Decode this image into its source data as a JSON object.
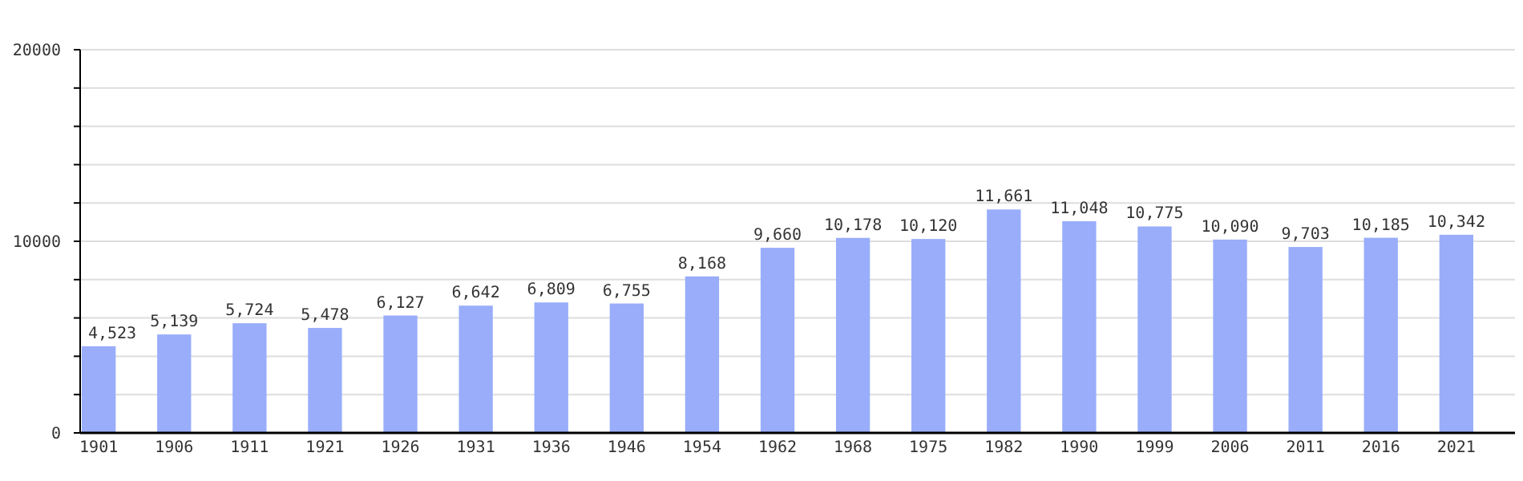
{
  "chart_data": {
    "type": "bar",
    "categories": [
      "1901",
      "1906",
      "1911",
      "1921",
      "1926",
      "1931",
      "1936",
      "1946",
      "1954",
      "1962",
      "1968",
      "1975",
      "1982",
      "1990",
      "1999",
      "2006",
      "2011",
      "2016",
      "2021"
    ],
    "values": [
      4523,
      5139,
      5724,
      5478,
      6127,
      6642,
      6809,
      6755,
      8168,
      9660,
      10178,
      10120,
      11661,
      11048,
      10775,
      10090,
      9703,
      10185,
      10342
    ],
    "value_labels": [
      "4,523",
      "5,139",
      "5,724",
      "5,478",
      "6,127",
      "6,642",
      "6,809",
      "6,755",
      "8,168",
      "9,660",
      "10,178",
      "10,120",
      "11,661",
      "11,048",
      "10,775",
      "10,090",
      "9,703",
      "10,185",
      "10,342"
    ],
    "color": "#99adfa",
    "ylim": [
      0,
      20000
    ],
    "yticks": [
      0,
      {
        "value": 2000,
        "label": null
      },
      {
        "value": 4000,
        "label": null
      },
      {
        "value": 6000,
        "label": null
      },
      {
        "value": 8000,
        "label": null
      },
      10000,
      {
        "value": 12000,
        "label": null
      },
      {
        "value": 14000,
        "label": null
      },
      {
        "value": 16000,
        "label": null
      },
      {
        "value": 18000,
        "label": null
      },
      20000
    ],
    "grid": true
  }
}
